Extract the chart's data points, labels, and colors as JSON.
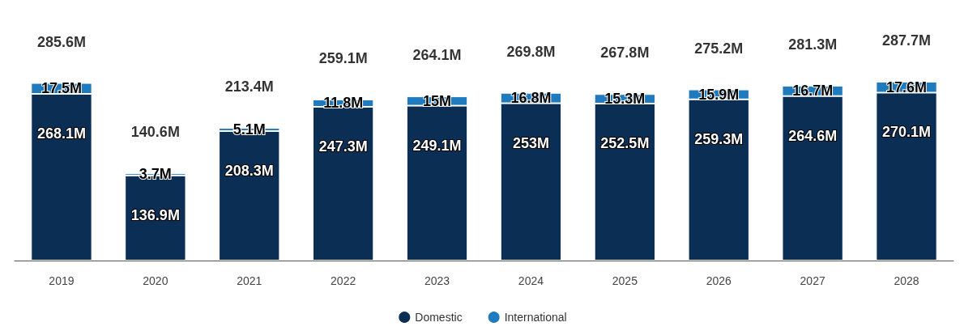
{
  "chart_data": {
    "type": "bar",
    "stacked": true,
    "categories": [
      "2019",
      "2020",
      "2021",
      "2022",
      "2023",
      "2024",
      "2025",
      "2026",
      "2027",
      "2028"
    ],
    "series": [
      {
        "name": "Domestic",
        "color": "#0b2e55",
        "values": [
          268.1,
          136.9,
          208.3,
          247.3,
          249.1,
          253,
          252.5,
          259.3,
          264.6,
          270.1
        ],
        "value_labels": [
          "268.1M",
          "136.9M",
          "208.3M",
          "247.3M",
          "249.1M",
          "253M",
          "252.5M",
          "259.3M",
          "264.6M",
          "270.1M"
        ]
      },
      {
        "name": "International",
        "color": "#1f7bbd",
        "values": [
          17.5,
          3.7,
          5.1,
          11.8,
          15,
          16.8,
          15.3,
          15.9,
          16.7,
          17.6
        ],
        "value_labels": [
          "17.5M",
          "3.7M",
          "5.1M",
          "11.8M",
          "15M",
          "16.8M",
          "15.3M",
          "15.9M",
          "16.7M",
          "17.6M"
        ]
      }
    ],
    "totals": [
      "285.6M",
      "140.6M",
      "213.4M",
      "259.1M",
      "264.1M",
      "269.8M",
      "267.8M",
      "275.2M",
      "281.3M",
      "287.7M"
    ],
    "legend": "bottom",
    "grid": false
  }
}
